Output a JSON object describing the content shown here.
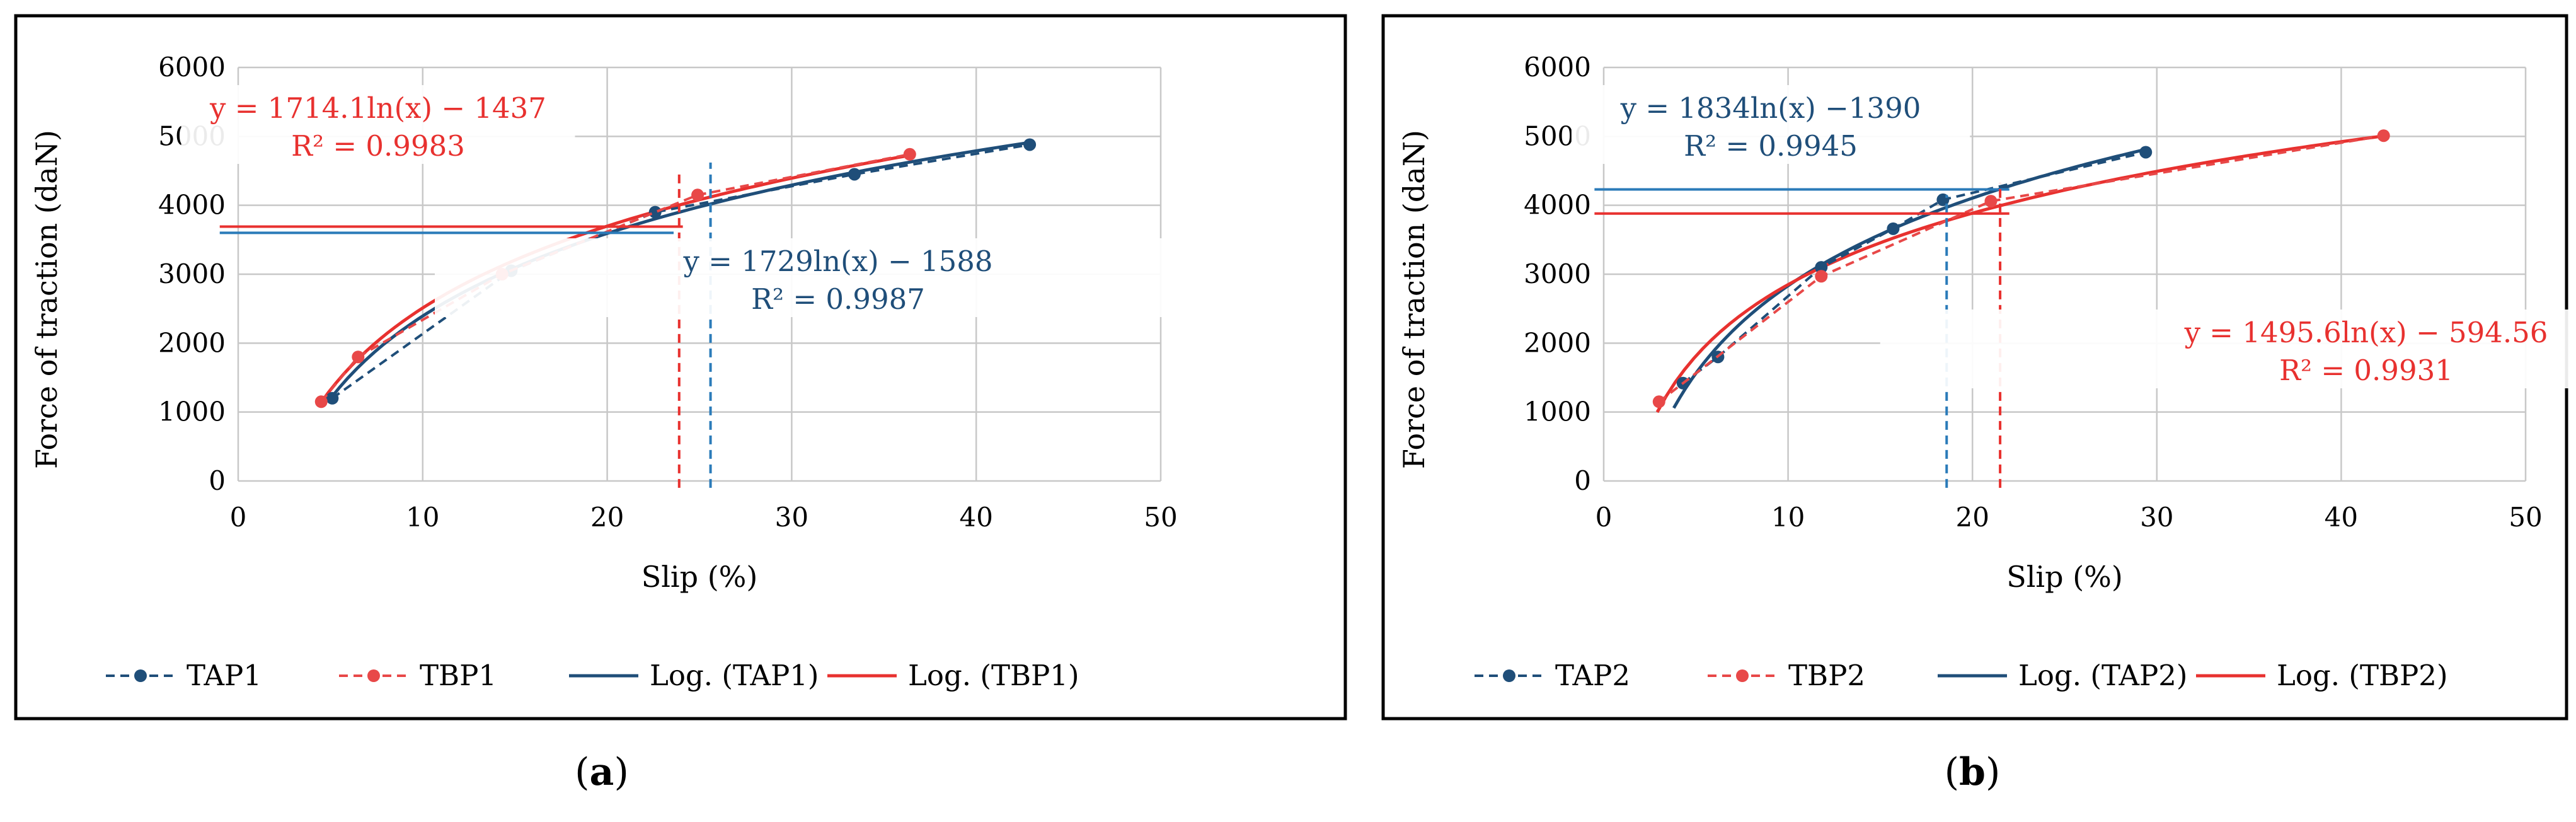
{
  "chart_data": [
    {
      "type": "scatter",
      "panel_label": "a",
      "xlabel": "Slip (%)",
      "ylabel": "Force of traction (daN)",
      "xlim": [
        0,
        50
      ],
      "ylim": [
        0,
        6000
      ],
      "x_ticks": [
        "0",
        "10",
        "20",
        "30",
        "40",
        "50"
      ],
      "y_ticks": [
        "0",
        "1000",
        "2000",
        "3000",
        "4000",
        "5000",
        "6000"
      ],
      "grid": true,
      "series": [
        {
          "name": "TAP1",
          "color": "#1f4e79",
          "style": "dashed-markers",
          "x": [
            5.1,
            14.8,
            22.6,
            33.4,
            42.9
          ],
          "y": [
            1200,
            3050,
            3900,
            4450,
            4880
          ]
        },
        {
          "name": "TBP1",
          "color": "#e84848",
          "style": "dashed-markers",
          "x": [
            4.5,
            6.5,
            14.3,
            24.9,
            36.4
          ],
          "y": [
            1150,
            1800,
            3000,
            4150,
            4740
          ]
        }
      ],
      "trendlines": [
        {
          "name": "Log. (TAP1)",
          "color": "#1f4e79",
          "a": 1729,
          "b": -1588,
          "x_range": [
            5,
            43
          ]
        },
        {
          "name": "Log. (TBP1)",
          "color": "#e8312f",
          "a": 1714.1,
          "b": -1437,
          "x_range": [
            4.5,
            36.4
          ]
        }
      ],
      "equations": [
        {
          "line1": "y = 1714.1ln(x) − 1437",
          "line2": "R² = 0.9983",
          "color": "#e8312f"
        },
        {
          "line1": "y = 1729ln(x) − 1588",
          "line2": "R² = 0.9987",
          "color": "#1f4e79"
        }
      ],
      "annotations": [
        {
          "type": "hline",
          "y": 3600,
          "x_range": [
            -1,
            23.6
          ],
          "color": "#2b7bb9"
        },
        {
          "type": "hline",
          "y": 3690,
          "x_range": [
            -1,
            24.1
          ],
          "color": "#e8312f"
        },
        {
          "type": "vline",
          "x": 23.9,
          "y_range": [
            -100,
            4450
          ],
          "color": "#e8312f"
        },
        {
          "type": "vline",
          "x": 25.6,
          "y_range": [
            -100,
            4620
          ],
          "color": "#2b7bb9"
        }
      ],
      "legend": [
        "TAP1",
        "TBP1",
        "Log. (TAP1)",
        "Log. (TBP1)"
      ]
    },
    {
      "type": "scatter",
      "panel_label": "b",
      "xlabel": "Slip (%)",
      "ylabel": "Force of traction (daN)",
      "xlim": [
        0,
        50
      ],
      "ylim": [
        0,
        6000
      ],
      "x_ticks": [
        "0",
        "10",
        "20",
        "30",
        "40",
        "50"
      ],
      "y_ticks": [
        "0",
        "1000",
        "2000",
        "3000",
        "4000",
        "5000",
        "6000"
      ],
      "grid": true,
      "series": [
        {
          "name": "TAP2",
          "color": "#1f4e79",
          "style": "dashed-markers",
          "x": [
            4.3,
            6.2,
            11.8,
            15.7,
            18.4,
            29.4
          ],
          "y": [
            1420,
            1800,
            3100,
            3660,
            4080,
            4770
          ]
        },
        {
          "name": "TBP2",
          "color": "#e84848",
          "style": "dashed-markers",
          "x": [
            3.0,
            11.8,
            21.0,
            42.3
          ],
          "y": [
            1150,
            2970,
            4060,
            5010
          ]
        }
      ],
      "trendlines": [
        {
          "name": "Log. (TAP2)",
          "color": "#1f4e79",
          "a": 1834,
          "b": -1390,
          "x_range": [
            3.8,
            29.4
          ]
        },
        {
          "name": "Log. (TBP2)",
          "color": "#e8312f",
          "a": 1495.6,
          "b": -594.56,
          "x_range": [
            2.9,
            42.3
          ]
        }
      ],
      "equations": [
        {
          "line1": "y = 1834ln(x) −1390",
          "line2": "R² = 0.9945",
          "color": "#1f4e79"
        },
        {
          "line1": "y = 1495.6ln(x) − 594.56",
          "line2": "R² = 0.9931",
          "color": "#e8312f"
        }
      ],
      "annotations": [
        {
          "type": "hline",
          "y": 4230,
          "x_range": [
            -0.5,
            22
          ],
          "color": "#2b7bb9"
        },
        {
          "type": "hline",
          "y": 3880,
          "x_range": [
            -0.5,
            22
          ],
          "color": "#e8312f"
        },
        {
          "type": "vline",
          "x": 18.6,
          "y_range": [
            -100,
            4150
          ],
          "color": "#2b7bb9"
        },
        {
          "type": "vline",
          "x": 21.5,
          "y_range": [
            -100,
            4320
          ],
          "color": "#e8312f"
        }
      ],
      "legend": [
        "TAP2",
        "TBP2",
        "Log. (TAP2)",
        "Log. (TBP2)"
      ]
    }
  ]
}
